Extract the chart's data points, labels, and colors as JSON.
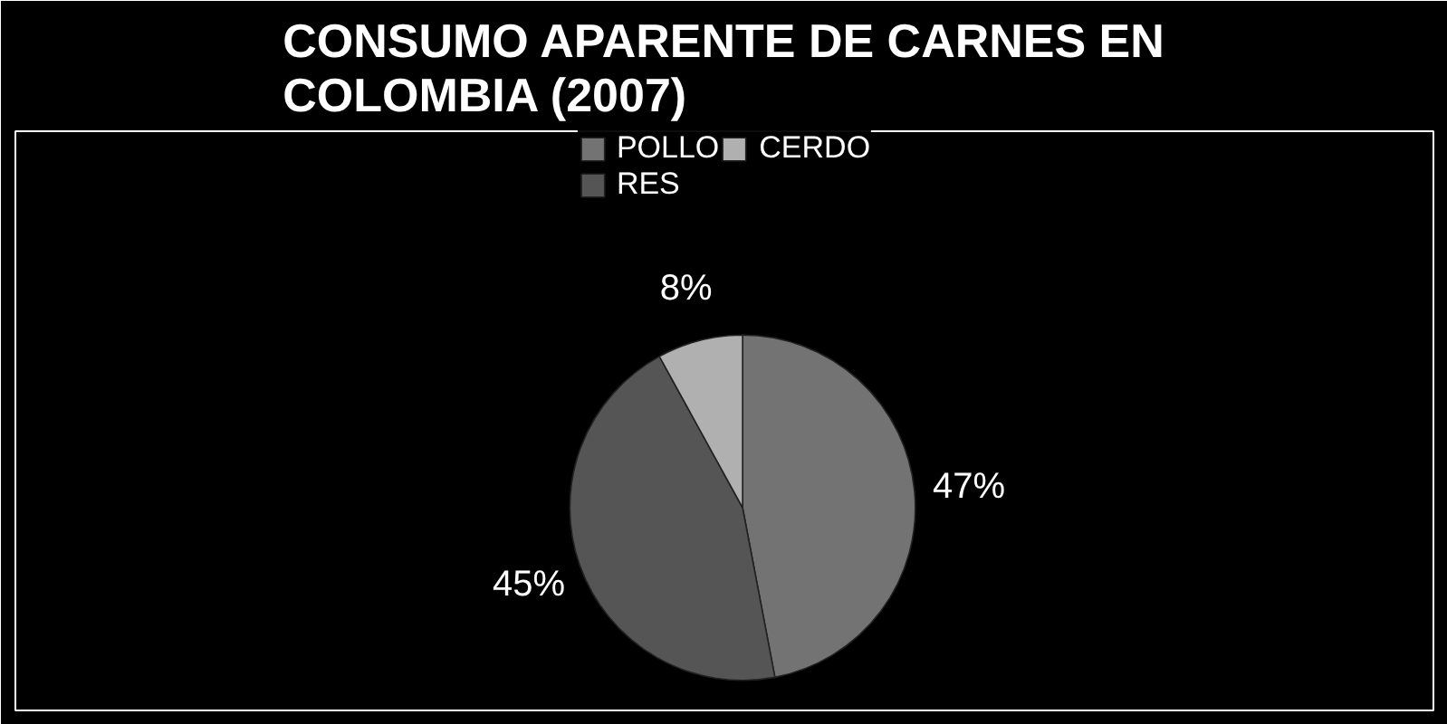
{
  "chart_data": {
    "type": "pie",
    "title": "CONSUMO APARENTE DE CARNES EN COLOMBIA (2007)",
    "categories": [
      "POLLO",
      "RES",
      "CERDO"
    ],
    "values": [
      47,
      45,
      8
    ],
    "colors": [
      "#737373",
      "#555555",
      "#b0b0b0"
    ],
    "value_labels": [
      "47%",
      "45%",
      "8%"
    ],
    "legend": "top"
  }
}
